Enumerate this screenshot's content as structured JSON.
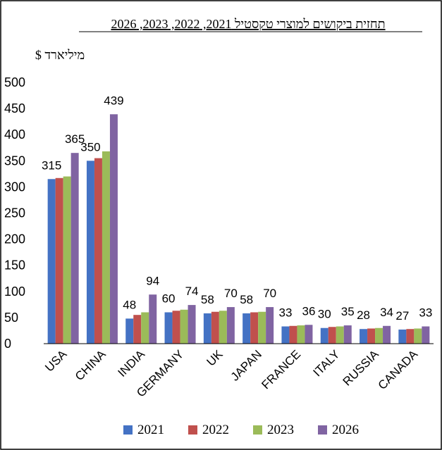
{
  "chart_data": {
    "type": "bar",
    "title": "תחזית ביקושים למוצרי טקסטיל 2021, 2022, 2023, 2026",
    "ylabel": "מיליארד $",
    "xlabel": "",
    "ylim": [
      0,
      500
    ],
    "yticks": [
      0,
      50,
      100,
      150,
      200,
      250,
      300,
      350,
      400,
      450,
      500
    ],
    "grid": false,
    "legend_position": "bottom",
    "categories": [
      "USA",
      "CHINA",
      "INDIA",
      "GERMANY",
      "UK",
      "JAPAN",
      "FRANCE",
      "ITALY",
      "RUSSIA",
      "CANADA"
    ],
    "series": [
      {
        "name": "2021",
        "color": "#4472c4",
        "values": [
          315,
          350,
          48,
          60,
          58,
          58,
          33,
          30,
          28,
          27
        ]
      },
      {
        "name": "2022",
        "color": "#c0504d",
        "values": [
          317,
          355,
          55,
          63,
          61,
          60,
          34,
          32,
          29,
          28
        ]
      },
      {
        "name": "2023",
        "color": "#9bbb59",
        "values": [
          320,
          368,
          60,
          65,
          63,
          61,
          35,
          33,
          30,
          29
        ]
      },
      {
        "name": "2026",
        "color": "#8064a2",
        "values": [
          365,
          439,
          94,
          74,
          70,
          70,
          36,
          35,
          34,
          33
        ]
      }
    ],
    "data_labels": [
      {
        "category": 0,
        "text": "315",
        "value": 315,
        "series": 0
      },
      {
        "category": 0,
        "text": "365",
        "value": 365,
        "series": 3
      },
      {
        "category": 1,
        "text": "350",
        "value": 350,
        "series": 0
      },
      {
        "category": 1,
        "text": "439",
        "value": 439,
        "series": 3
      },
      {
        "category": 2,
        "text": "48",
        "value": 48,
        "series": 0
      },
      {
        "category": 2,
        "text": "94",
        "value": 94,
        "series": 3
      },
      {
        "category": 3,
        "text": "60",
        "value": 60,
        "series": 0
      },
      {
        "category": 3,
        "text": "74",
        "value": 74,
        "series": 3
      },
      {
        "category": 4,
        "text": "58",
        "value": 58,
        "series": 0
      },
      {
        "category": 4,
        "text": "70",
        "value": 70,
        "series": 3
      },
      {
        "category": 5,
        "text": "58",
        "value": 58,
        "series": 0
      },
      {
        "category": 5,
        "text": "70",
        "value": 70,
        "series": 3
      },
      {
        "category": 6,
        "text": "33",
        "value": 33,
        "series": 0
      },
      {
        "category": 6,
        "text": "36",
        "value": 36,
        "series": 3
      },
      {
        "category": 7,
        "text": "30",
        "value": 30,
        "series": 0
      },
      {
        "category": 7,
        "text": "35",
        "value": 35,
        "series": 3
      },
      {
        "category": 8,
        "text": "28",
        "value": 28,
        "series": 0
      },
      {
        "category": 8,
        "text": "34",
        "value": 34,
        "series": 3
      },
      {
        "category": 9,
        "text": "27",
        "value": 27,
        "series": 0
      },
      {
        "category": 9,
        "text": "33",
        "value": 33,
        "series": 3
      }
    ]
  }
}
